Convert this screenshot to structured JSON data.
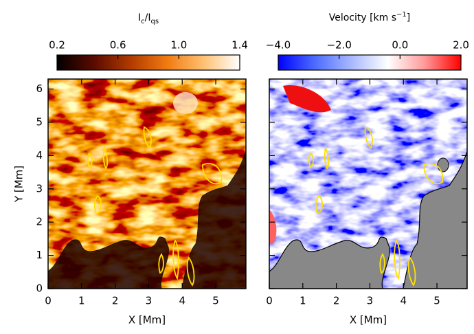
{
  "chart_data": [
    {
      "type": "image",
      "colorbar_label": [
        "I",
        "c",
        "/I",
        "qs"
      ],
      "clim": [
        0.2,
        1.4
      ],
      "cticks": [
        0.2,
        0.6,
        {
          "value": 1,
          "label": "1.0"
        },
        1.4
      ],
      "colormap": [
        "#000000",
        "#5a0a00",
        "#b03a00",
        "#f07a10",
        "#ffc070",
        "#ffffff"
      ],
      "xlabel": "X [Mm]",
      "ylabel": "Y [Mm]",
      "xlim": [
        0,
        5.9
      ],
      "ylim": [
        0,
        6.3
      ],
      "xticks": [
        0,
        1,
        2,
        3,
        4,
        5
      ],
      "yticks": [
        0,
        1,
        2,
        3,
        4,
        5,
        6
      ],
      "show_ytick_labels": true,
      "masked": false
    },
    {
      "type": "image",
      "colorbar_label": [
        "Velocity [km s",
        "−1",
        "]"
      ],
      "clim": [
        -4,
        2
      ],
      "cticks": [
        {
          "value": -4,
          "label": "−4.0"
        },
        {
          "value": -2,
          "label": "−2.0"
        },
        {
          "value": 0,
          "label": "0.0"
        },
        {
          "value": 2,
          "label": "2.0"
        }
      ],
      "colormap": [
        "#0000ff",
        "#4c6cff",
        "#a8b8ff",
        "#ffffff",
        "#ff9a9a",
        "#ff0000"
      ],
      "xlabel": "X [Mm]",
      "xlim": [
        0,
        5.9
      ],
      "ylim": [
        0,
        6.3
      ],
      "xticks": [
        0,
        1,
        2,
        3,
        4,
        5
      ],
      "yticks": [
        0,
        1,
        2,
        3,
        4,
        5,
        6
      ],
      "show_ytick_labels": false,
      "masked": true
    }
  ]
}
